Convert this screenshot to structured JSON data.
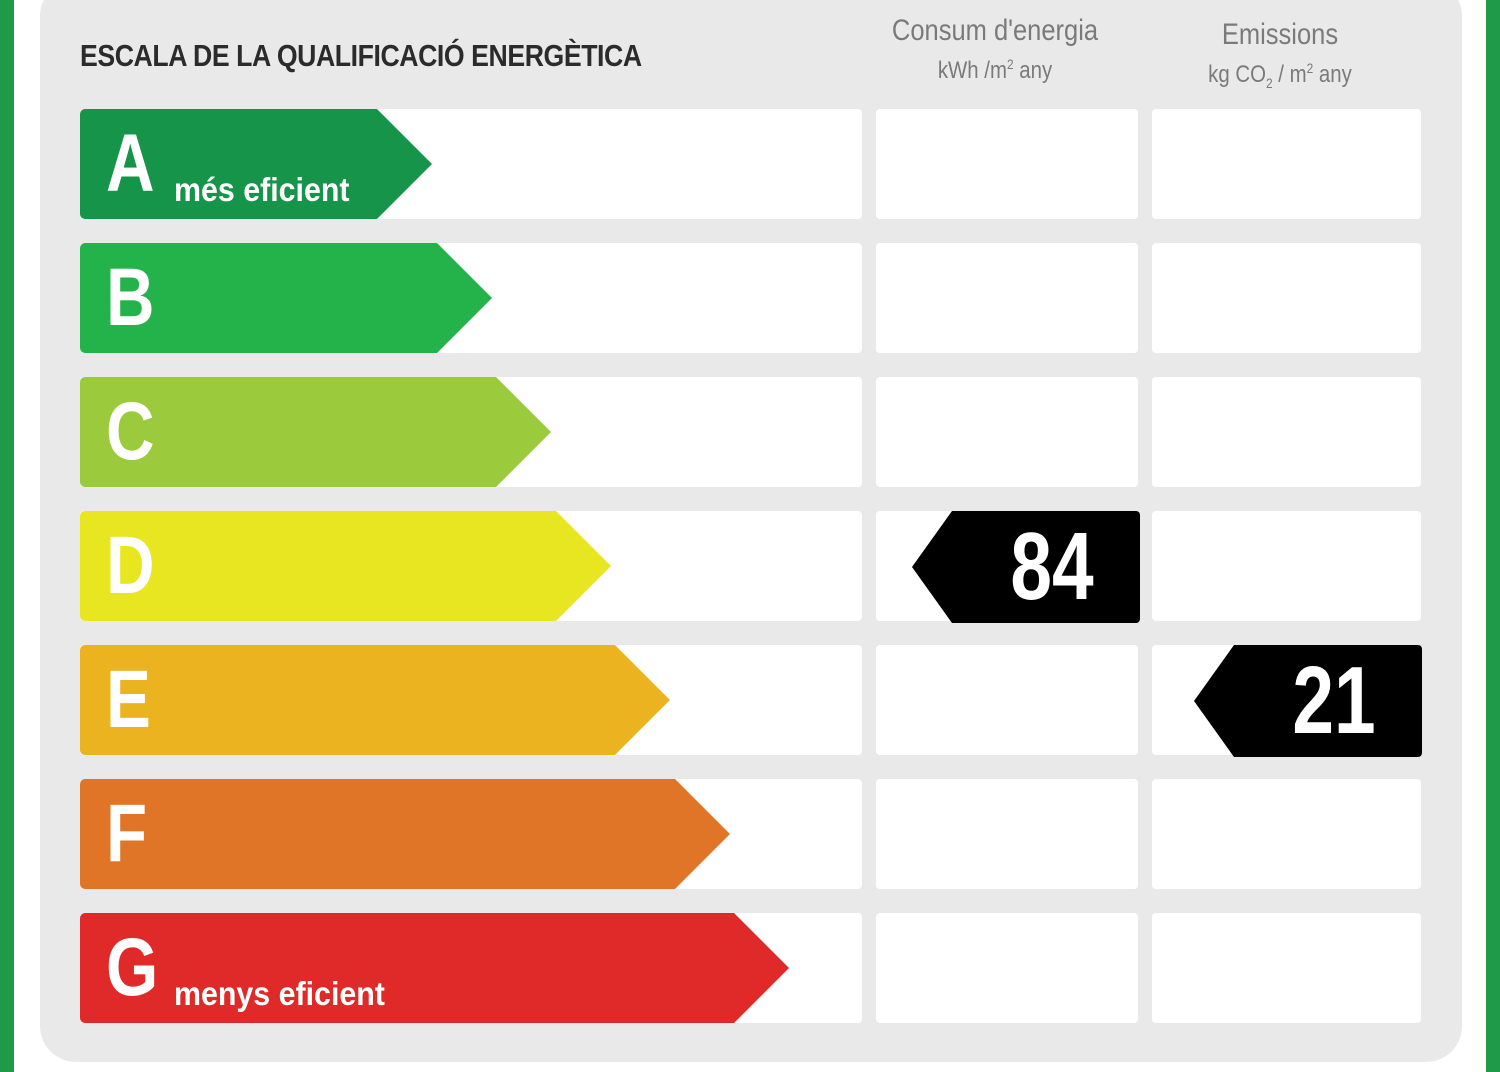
{
  "title": "ESCALA DE LA QUALIFICACIÓ ENERGÈTICA",
  "columns": {
    "consum": {
      "label": "Consum d'energia",
      "unit_pre": "kWh /m",
      "unit_sup": "2",
      "unit_post": " any"
    },
    "emissions": {
      "label": "Emissions",
      "unit_a": "kg CO",
      "unit_sub": "2",
      "unit_b": " / m",
      "unit_sup": "2",
      "unit_c": " any"
    }
  },
  "ratings": [
    {
      "letter": "A",
      "sublabel": "més eficient",
      "color": "#16954a"
    },
    {
      "letter": "B",
      "sublabel": "",
      "color": "#24b24a"
    },
    {
      "letter": "C",
      "sublabel": "",
      "color": "#9bca3c"
    },
    {
      "letter": "D",
      "sublabel": "",
      "color": "#e8e621"
    },
    {
      "letter": "E",
      "sublabel": "",
      "color": "#ecb321"
    },
    {
      "letter": "F",
      "sublabel": "",
      "color": "#e07527"
    },
    {
      "letter": "G",
      "sublabel": "menys eficient",
      "color": "#e02a2a"
    }
  ],
  "consum_value": {
    "value": "84",
    "rating": "D"
  },
  "emissions_value": {
    "value": "21",
    "rating": "E"
  },
  "colors": {
    "frame": "#1f9a48",
    "panel": "#e9e9e9",
    "marker": "#000000"
  }
}
